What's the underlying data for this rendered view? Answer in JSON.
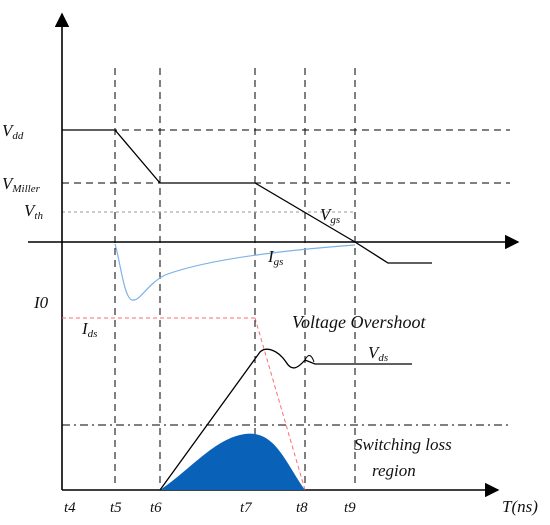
{
  "diagram": {
    "labels": {
      "vdd_main": "V",
      "vdd_sub": "dd",
      "vmiller_main": "V",
      "vmiller_sub": "Miller",
      "vth_main": "V",
      "vth_sub": "th",
      "vgs_main": "V",
      "vgs_sub": "gs",
      "igs_main": "I",
      "igs_sub": "gs",
      "i0": "I0",
      "ids_main": "I",
      "ids_sub": "ds",
      "vds_main": "V",
      "vds_sub": "ds",
      "voltage_overshoot": "Voltage Overshoot",
      "switching_loss_line1": "Switching loss",
      "switching_loss_line2": "region",
      "time_axis": "T(ns)"
    },
    "time_ticks": [
      "t4",
      "t5",
      "t6",
      "t7",
      "t8",
      "t9"
    ],
    "colors": {
      "axis": "#000000",
      "guide": "#000000",
      "igs_curve": "#7fb2e6",
      "current_dash": "#ff6b6b",
      "loss_fill": "#0a62b8"
    }
  }
}
